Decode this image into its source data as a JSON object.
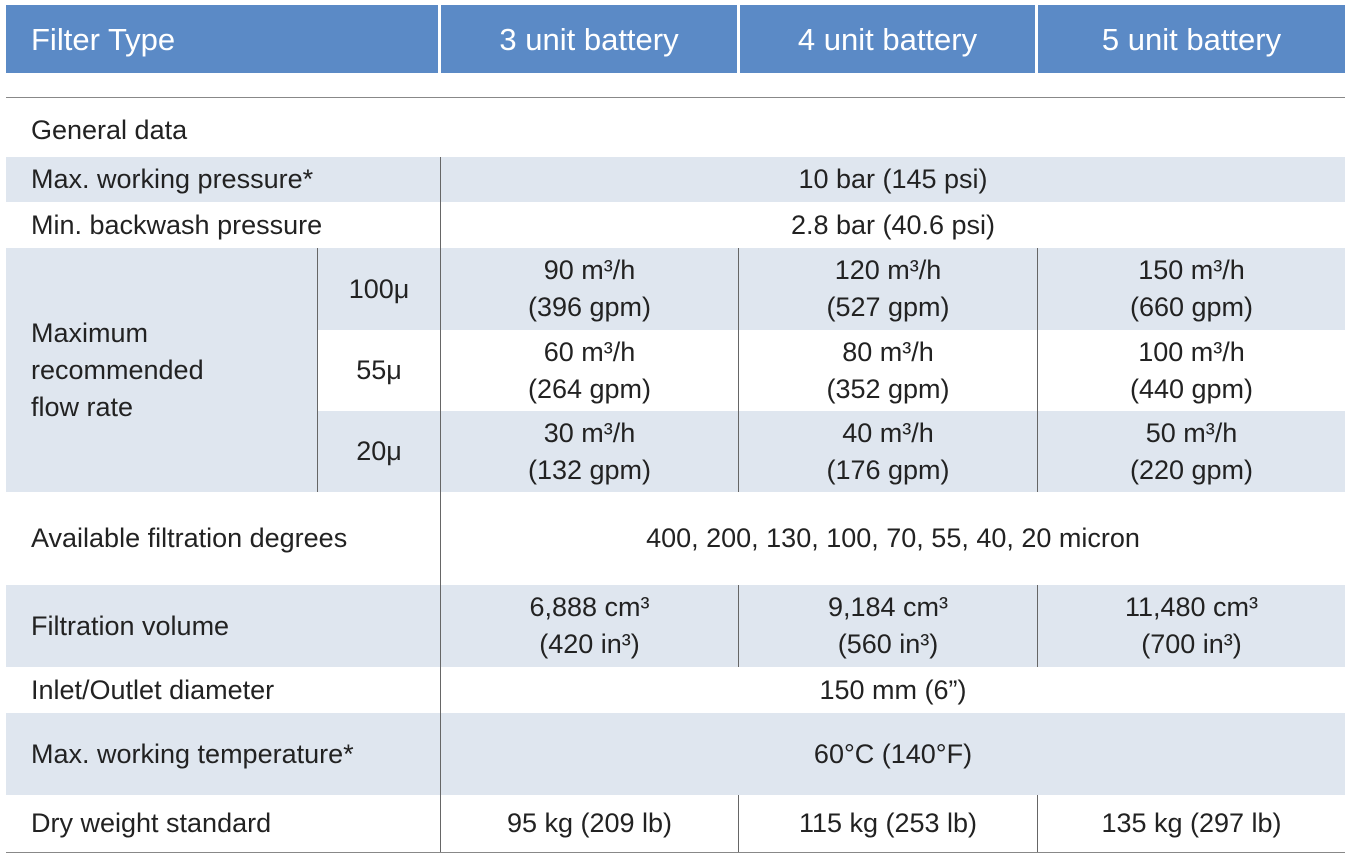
{
  "header": [
    "Filter Type",
    "3 unit battery",
    "4 unit battery",
    "5 unit battery"
  ],
  "section": "General data",
  "rows": [
    {
      "label": "Max. working pressure*",
      "value": "10 bar (145 psi)"
    },
    {
      "label": "Min. backwash pressure",
      "value": "2.8 bar (40.6 psi)"
    },
    {
      "label": [
        "Maximum",
        "recommended",
        "flow rate"
      ],
      "grades": [
        {
          "grade": "100μ",
          "values": [
            [
              "90 m³/h",
              "(396 gpm)"
            ],
            [
              "120 m³/h",
              "(527 gpm)"
            ],
            [
              "150 m³/h",
              "(660 gpm)"
            ]
          ]
        },
        {
          "grade": "55μ",
          "values": [
            [
              "60 m³/h",
              "(264 gpm)"
            ],
            [
              "80 m³/h",
              "(352 gpm)"
            ],
            [
              "100 m³/h",
              "(440 gpm)"
            ]
          ]
        },
        {
          "grade": "20μ",
          "values": [
            [
              "30 m³/h",
              "(132 gpm)"
            ],
            [
              "40 m³/h",
              "(176 gpm)"
            ],
            [
              "50 m³/h",
              "(220 gpm)"
            ]
          ]
        }
      ]
    },
    {
      "label": "Available filtration degrees",
      "value": "400, 200, 130, 100, 70, 55, 40, 20 micron"
    },
    {
      "label": "Filtration volume",
      "values": [
        [
          "6,888 cm³",
          "(420 in³)"
        ],
        [
          "9,184 cm³",
          "(560 in³)"
        ],
        [
          "11,480 cm³",
          "(700 in³)"
        ]
      ]
    },
    {
      "label": "Inlet/Outlet diameter",
      "value": "150 mm (6”)"
    },
    {
      "label": "Max. working temperature*",
      "value": "60°C (140°F)"
    },
    {
      "label": "Dry weight standard",
      "values": [
        "95 kg (209 lb)",
        "115 kg (253 lb)",
        "135 kg (297 lb)"
      ]
    }
  ]
}
